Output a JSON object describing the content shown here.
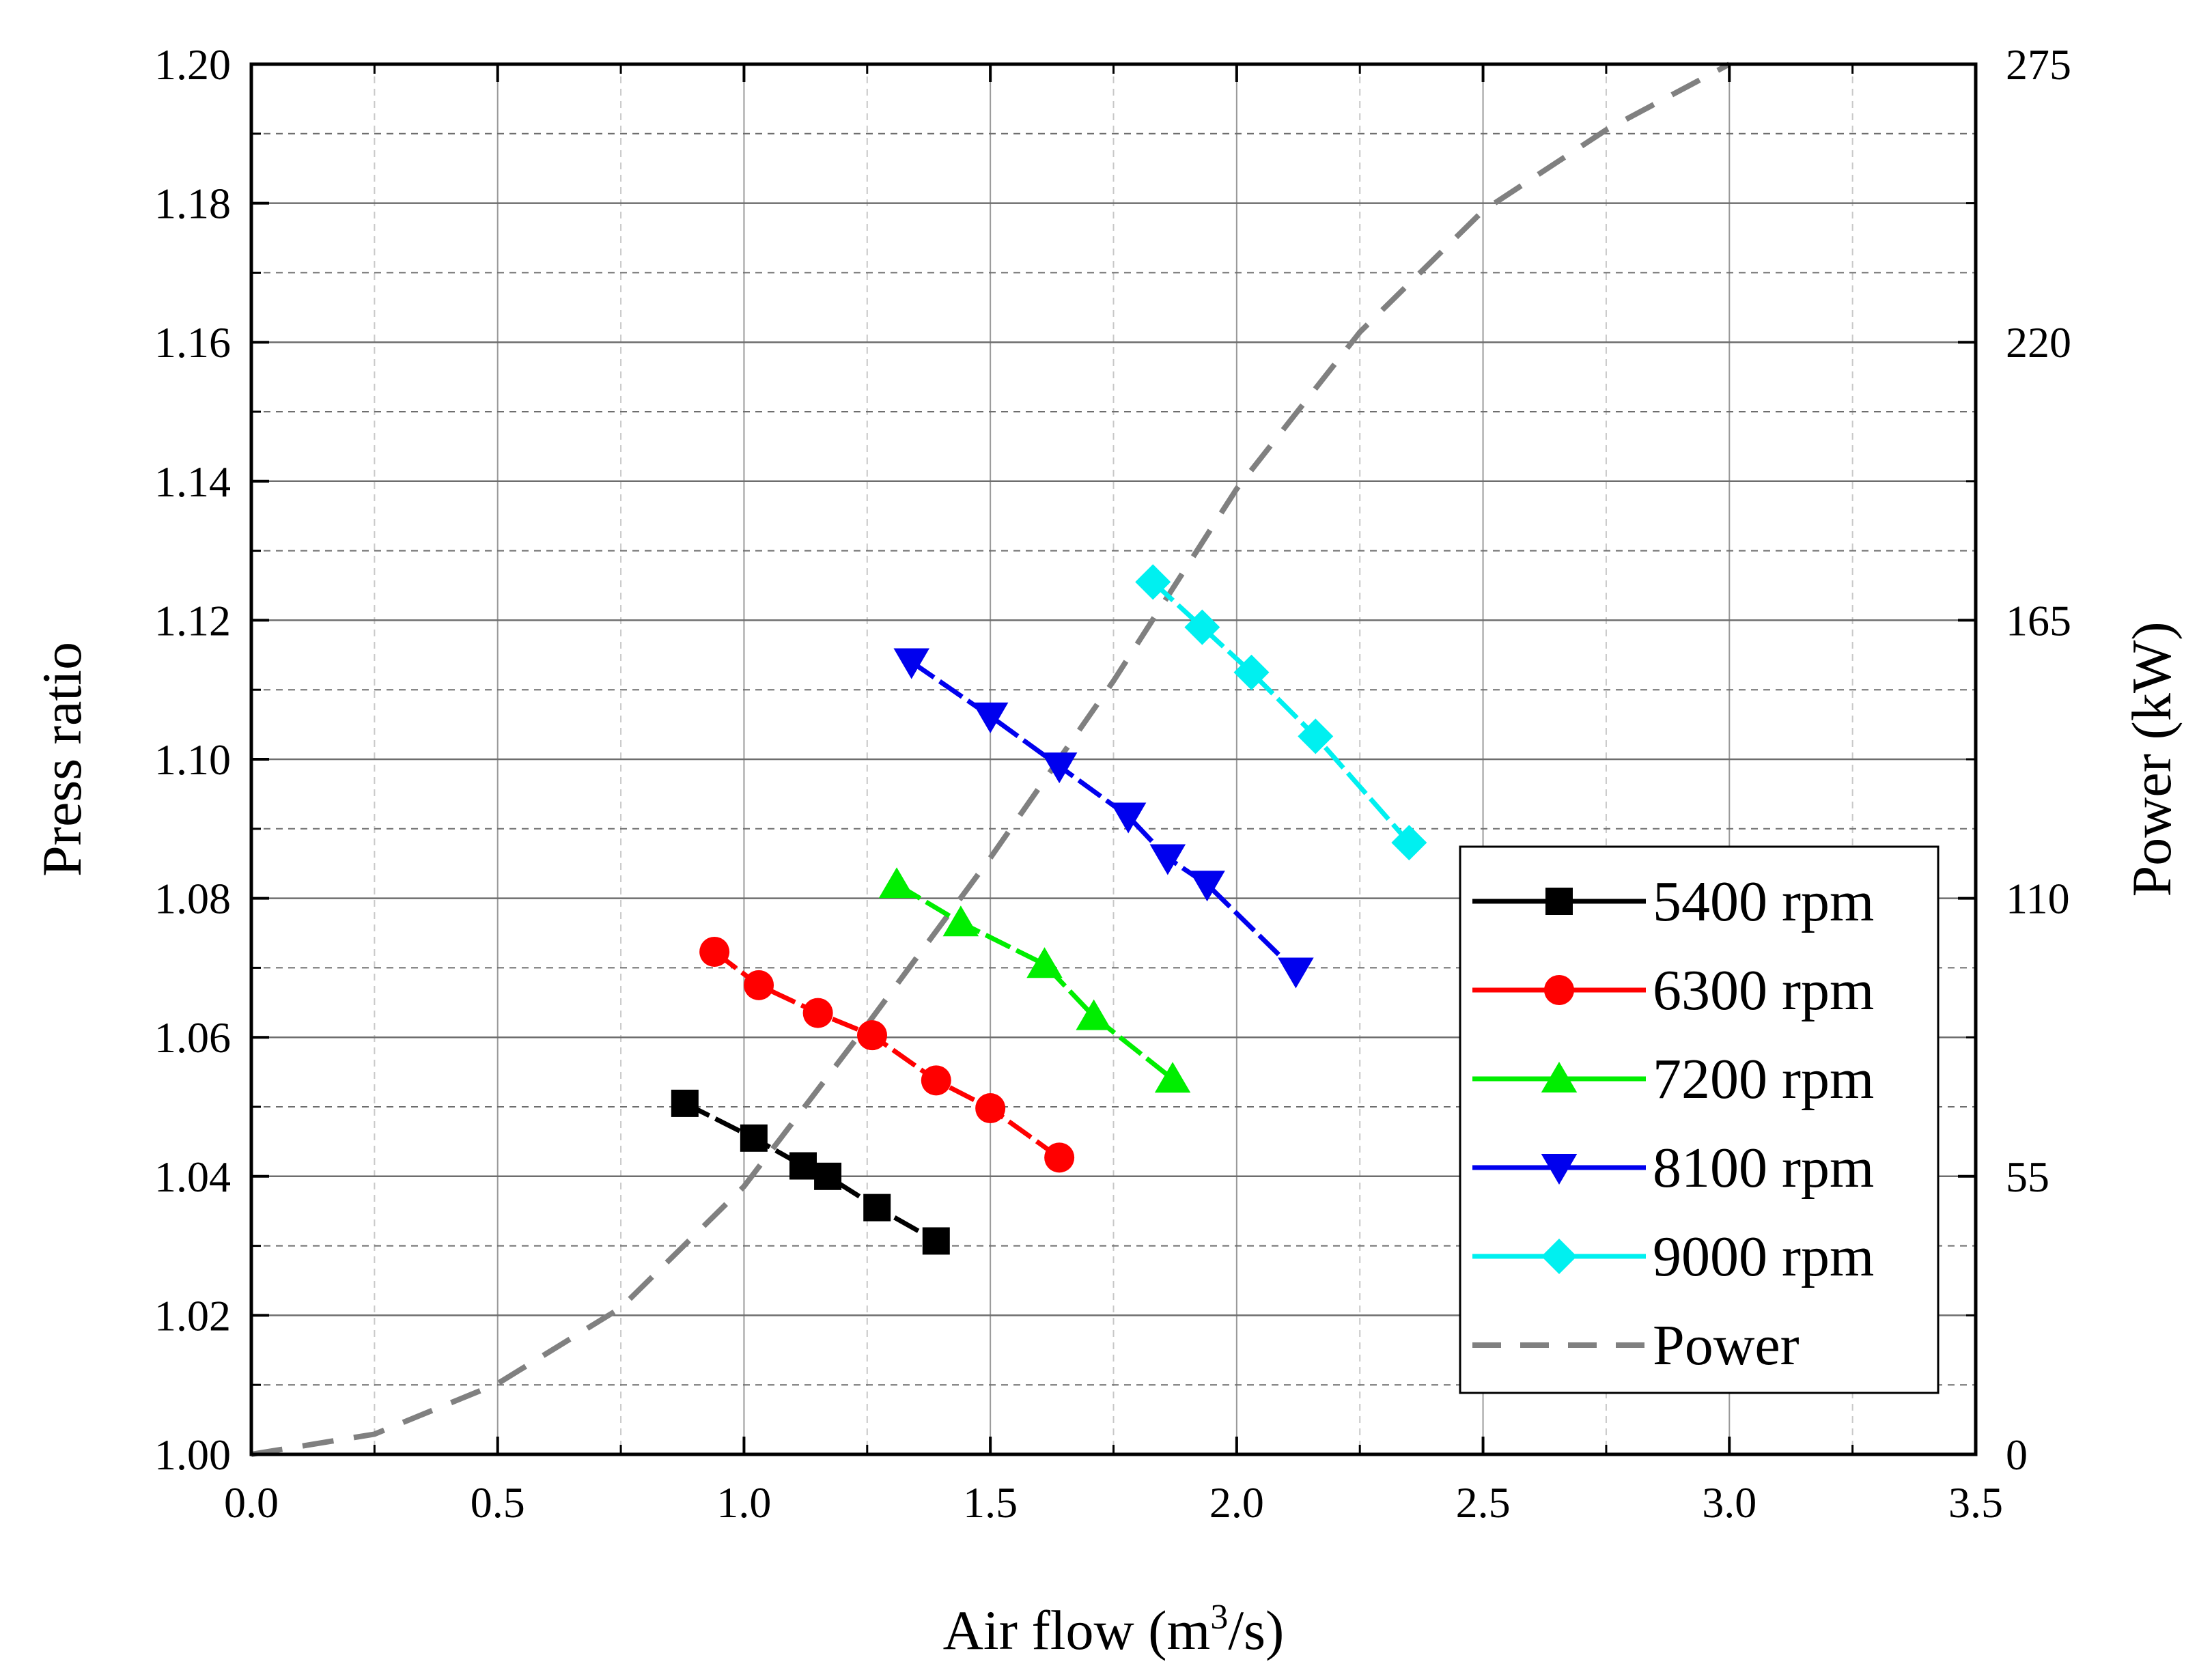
{
  "chart_data": {
    "type": "line",
    "title": "",
    "xlabel": "Air flow (m",
    "xlabel_sup": "3",
    "xlabel_end": "/s)",
    "ylabel": "Press ratio",
    "y2label": "Power (kW)",
    "xlim": [
      0.0,
      3.5
    ],
    "ylim": [
      1.0,
      1.2
    ],
    "y2lim": [
      0,
      275
    ],
    "grid": true,
    "legend_position": "lower-right",
    "x_ticks": [
      "0.0",
      "0.5",
      "1.0",
      "1.5",
      "2.0",
      "2.5",
      "3.0",
      "3.5"
    ],
    "y_ticks": [
      "1.00",
      "1.02",
      "1.04",
      "1.06",
      "1.08",
      "1.10",
      "1.12",
      "1.14",
      "1.16",
      "1.18",
      "1.20"
    ],
    "y2_ticks": [
      "0",
      "55",
      "110",
      "165",
      "220",
      "275"
    ],
    "series": [
      {
        "name": "5400 rpm",
        "color": "#000000",
        "marker": "square",
        "x": [
          0.88,
          1.02,
          1.12,
          1.17,
          1.27,
          1.39
        ],
        "y": [
          1.0505,
          1.0455,
          1.0415,
          1.04,
          1.0355,
          1.0307
        ]
      },
      {
        "name": "6300 rpm",
        "color": "#ff0000",
        "marker": "circle",
        "x": [
          0.94,
          1.03,
          1.15,
          1.26,
          1.39,
          1.5,
          1.64
        ],
        "y": [
          1.0723,
          1.0675,
          1.0635,
          1.0603,
          1.0538,
          1.0498,
          1.0427
        ]
      },
      {
        "name": "7200 rpm",
        "color": "#00ee00",
        "marker": "triangle-up",
        "x": [
          1.31,
          1.44,
          1.61,
          1.71,
          1.87
        ],
        "y": [
          1.082,
          1.0765,
          1.0705,
          1.063,
          1.054
        ]
      },
      {
        "name": "8100 rpm",
        "color": "#0000ee",
        "marker": "triangle-down",
        "x": [
          1.34,
          1.5,
          1.64,
          1.78,
          1.86,
          1.94,
          2.12
        ],
        "y": [
          1.114,
          1.1062,
          1.099,
          1.0918,
          1.0858,
          1.082,
          1.0695
        ]
      },
      {
        "name": "9000 rpm",
        "color": "#00f0f0",
        "marker": "diamond",
        "x": [
          1.83,
          1.93,
          2.03,
          2.16,
          2.35
        ],
        "y": [
          1.1255,
          1.119,
          1.1125,
          1.1033,
          1.088
        ]
      },
      {
        "name": "Power",
        "color": "#808080",
        "marker": "none",
        "dashed": true,
        "axis": "right",
        "x": [
          0.0,
          0.25,
          0.5,
          0.75,
          1.0,
          1.25,
          1.5,
          1.75,
          2.0,
          2.25,
          2.5,
          2.75,
          3.0
        ],
        "y": [
          0,
          4,
          14,
          29,
          53,
          85,
          118,
          153,
          191,
          222,
          246,
          262,
          275
        ]
      }
    ]
  }
}
